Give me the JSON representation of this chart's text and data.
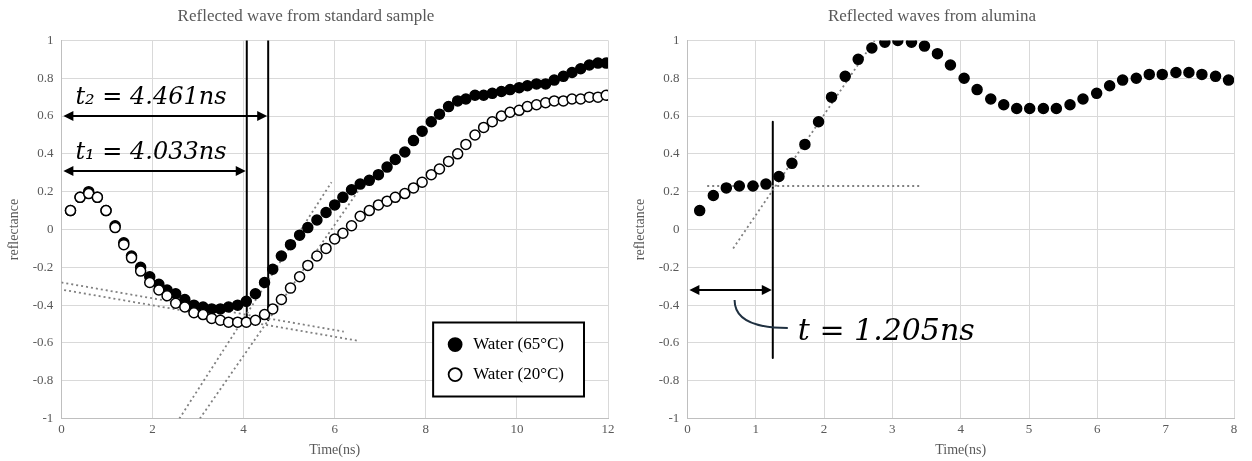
{
  "chart_data": [
    {
      "type": "scatter",
      "title": "Reflected wave from standard sample",
      "xlabel": "Time(ns)",
      "ylabel": "reflectance",
      "x": [
        0.2,
        0.41,
        0.6,
        0.79,
        0.98,
        1.18,
        1.37,
        1.54,
        1.74,
        1.94,
        2.14,
        2.32,
        2.51,
        2.71,
        2.91,
        3.11,
        3.3,
        3.49,
        3.67,
        3.87,
        4.06,
        4.26,
        4.46,
        4.64,
        4.83,
        5.03,
        5.23,
        5.41,
        5.61,
        5.81,
        6.0,
        6.18,
        6.37,
        6.56,
        6.76,
        6.96,
        7.15,
        7.33,
        7.54,
        7.73,
        7.92,
        8.12,
        8.3,
        8.5,
        8.7,
        8.88,
        9.08,
        9.27,
        9.46,
        9.66,
        9.85,
        10.05,
        10.23,
        10.43,
        10.63,
        10.82,
        11.02,
        11.21,
        11.4,
        11.59,
        11.78,
        11.96
      ],
      "xlim": [
        0,
        12
      ],
      "xticks": [
        0,
        2,
        4,
        6,
        8,
        10,
        12
      ],
      "ylim": [
        -1,
        1
      ],
      "yticks": [
        -1,
        -0.8,
        -0.6,
        -0.4,
        -0.2,
        0,
        0.2,
        0.4,
        0.6,
        0.8,
        1
      ],
      "grid": true,
      "legend": "bottom right",
      "marker": "circle",
      "series": [
        {
          "name": "Water (20°C)",
          "color": "#ffffff",
          "values": [
            0.1,
            0.17,
            0.19,
            0.17,
            0.1,
            0.01,
            -0.08,
            -0.15,
            -0.22,
            -0.28,
            -0.32,
            -0.35,
            -0.39,
            -0.41,
            -0.44,
            -0.45,
            -0.47,
            -0.48,
            -0.49,
            -0.49,
            -0.49,
            -0.48,
            -0.45,
            -0.42,
            -0.37,
            -0.31,
            -0.25,
            -0.19,
            -0.14,
            -0.1,
            -0.05,
            -0.02,
            0.02,
            0.07,
            0.1,
            0.13,
            0.15,
            0.17,
            0.19,
            0.22,
            0.25,
            0.29,
            0.32,
            0.36,
            0.4,
            0.45,
            0.5,
            0.54,
            0.57,
            0.6,
            0.62,
            0.63,
            0.65,
            0.66,
            0.67,
            0.68,
            0.68,
            0.69,
            0.69,
            0.7,
            0.7,
            0.71
          ]
        },
        {
          "name": "Water (65°C)",
          "color": "#000000",
          "values": [
            0.1,
            0.17,
            0.2,
            0.17,
            0.1,
            0.02,
            -0.07,
            -0.14,
            -0.2,
            -0.25,
            -0.29,
            -0.32,
            -0.34,
            -0.37,
            -0.4,
            -0.41,
            -0.42,
            -0.42,
            -0.41,
            -0.4,
            -0.38,
            -0.34,
            -0.28,
            -0.21,
            -0.14,
            -0.08,
            -0.03,
            0.01,
            0.05,
            0.09,
            0.13,
            0.17,
            0.21,
            0.24,
            0.26,
            0.29,
            0.33,
            0.37,
            0.41,
            0.47,
            0.52,
            0.57,
            0.61,
            0.65,
            0.68,
            0.69,
            0.71,
            0.71,
            0.72,
            0.73,
            0.74,
            0.75,
            0.76,
            0.77,
            0.77,
            0.79,
            0.81,
            0.83,
            0.85,
            0.87,
            0.88,
            0.88
          ]
        },
        {
          "type": "line",
          "color": "#808080",
          "line_style": "dotted",
          "marker": "none",
          "x": [
            0,
            6.2
          ],
          "values": [
            -0.28,
            -0.54
          ]
        },
        {
          "type": "line",
          "color": "#808080",
          "line_style": "dotted",
          "marker": "none",
          "x": [
            0.06,
            6.55
          ],
          "values": [
            -0.32,
            -0.59
          ]
        },
        {
          "type": "line",
          "color": "#808080",
          "line_style": "dotted",
          "marker": "none",
          "x": [
            2.59,
            5.93
          ],
          "values": [
            -1,
            0.25
          ]
        },
        {
          "type": "line",
          "color": "#808080",
          "line_style": "dotted",
          "marker": "none",
          "x": [
            3.04,
            6.65
          ],
          "values": [
            -1,
            0.25
          ]
        },
        {
          "type": "line",
          "color": "#000000",
          "line_style": "solid",
          "marker": "none",
          "x": [
            4.07,
            4.07
          ],
          "values": [
            1,
            -0.5
          ]
        },
        {
          "type": "line",
          "color": "#000000",
          "line_style": "solid",
          "marker": "none",
          "x": [
            4.54,
            4.54
          ],
          "values": [
            1,
            -0.48
          ]
        }
      ],
      "annotations": [
        {
          "text": "t₂ = 4.461ns",
          "x": 4.54,
          "y": 0.6
        },
        {
          "text": "t₁ = 4.033ns",
          "x": 4.07,
          "y": 0.31
        }
      ]
    },
    {
      "type": "scatter",
      "title": "Reflected waves from alumina",
      "xlabel": "Time(ns)",
      "ylabel": "reflectance",
      "x": [
        0.18,
        0.38,
        0.57,
        0.76,
        0.96,
        1.15,
        1.34,
        1.53,
        1.72,
        1.92,
        2.11,
        2.31,
        2.5,
        2.7,
        2.89,
        3.08,
        3.28,
        3.47,
        3.66,
        3.85,
        4.05,
        4.24,
        4.44,
        4.63,
        4.82,
        5.01,
        5.21,
        5.4,
        5.6,
        5.79,
        5.99,
        6.18,
        6.37,
        6.57,
        6.76,
        6.95,
        7.15,
        7.34,
        7.53,
        7.73,
        7.92
      ],
      "xlim": [
        0,
        8
      ],
      "xticks": [
        0,
        1,
        2,
        3,
        4,
        5,
        6,
        7,
        8
      ],
      "ylim": [
        -1,
        1
      ],
      "yticks": [
        -1,
        -0.8,
        -0.6,
        -0.4,
        -0.2,
        0,
        0.2,
        0.4,
        0.6,
        0.8,
        1
      ],
      "grid": true,
      "marker": "circle",
      "series": [
        {
          "color": "#000000",
          "values": [
            0.1,
            0.18,
            0.22,
            0.23,
            0.23,
            0.24,
            0.28,
            0.35,
            0.45,
            0.57,
            0.7,
            0.81,
            0.9,
            0.96,
            0.99,
            1,
            0.99,
            0.97,
            0.93,
            0.87,
            0.8,
            0.74,
            0.69,
            0.66,
            0.64,
            0.64,
            0.64,
            0.64,
            0.66,
            0.69,
            0.72,
            0.76,
            0.79,
            0.8,
            0.82,
            0.82,
            0.83,
            0.83,
            0.82,
            0.81,
            0.79
          ]
        },
        {
          "type": "line",
          "color": "#808080",
          "line_style": "dotted",
          "marker": "none",
          "x": [
            0.67,
            2.74
          ],
          "values": [
            -0.1,
            1
          ]
        },
        {
          "type": "line",
          "color": "#808080",
          "line_style": "dotted",
          "marker": "none",
          "x": [
            0.29,
            3.43
          ],
          "values": [
            0.23,
            0.23
          ]
        },
        {
          "type": "line",
          "color": "#000000",
          "line_style": "solid",
          "marker": "none",
          "x": [
            1.25,
            1.25
          ],
          "values": [
            0.57,
            -0.68
          ]
        }
      ],
      "annotations": [
        {
          "text": "t = 1.205ns",
          "x": 1.25,
          "y": -0.32
        }
      ]
    }
  ]
}
